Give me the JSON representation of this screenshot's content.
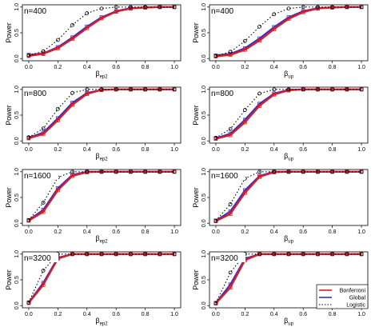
{
  "chart_data": {
    "type": "line",
    "ylabel": "Power",
    "xlim": [
      0,
      1
    ],
    "ylim": [
      0,
      1
    ],
    "x_ticks": [
      "0.0",
      "0.2",
      "0.4",
      "0.6",
      "0.8",
      "1.0"
    ],
    "y_ticks": [
      "0.0",
      "0.5",
      "1.0"
    ],
    "x": [
      0.0,
      0.1,
      0.2,
      0.3,
      0.4,
      0.5,
      0.6,
      0.7,
      0.8,
      0.9,
      1.0
    ],
    "legend": {
      "placement": "bottom-right of last panel",
      "entries": [
        {
          "name": "Bonferroni",
          "color": "#e41a1c",
          "style": "solid"
        },
        {
          "name": "Global",
          "color": "#3333cc",
          "style": "solid"
        },
        {
          "name": "Logistic",
          "color": "#000000",
          "style": "dotted"
        }
      ]
    },
    "panels": [
      {
        "n_label": "n=400",
        "xlabel_base": "β",
        "xlabel_sub": "ep2",
        "series": [
          {
            "name": "Bonferroni",
            "values": [
              0.05,
              0.09,
              0.2,
              0.38,
              0.59,
              0.78,
              0.91,
              0.97,
              0.99,
              1.0,
              1.0
            ]
          },
          {
            "name": "Global",
            "values": [
              0.07,
              0.1,
              0.22,
              0.41,
              0.62,
              0.8,
              0.92,
              0.98,
              0.99,
              1.0,
              1.0
            ]
          },
          {
            "name": "Logistic",
            "values": [
              0.06,
              0.14,
              0.36,
              0.65,
              0.88,
              0.97,
              1.0,
              1.0,
              1.0,
              1.0,
              1.0
            ]
          }
        ]
      },
      {
        "n_label": "n=400",
        "xlabel_base": "β",
        "xlabel_sub": "up",
        "series": [
          {
            "name": "Bonferroni",
            "values": [
              0.04,
              0.07,
              0.17,
              0.35,
              0.57,
              0.77,
              0.9,
              0.97,
              0.99,
              1.0,
              1.0
            ]
          },
          {
            "name": "Global",
            "values": [
              0.06,
              0.09,
              0.2,
              0.39,
              0.61,
              0.8,
              0.92,
              0.98,
              0.99,
              1.0,
              1.0
            ]
          },
          {
            "name": "Logistic",
            "values": [
              0.05,
              0.13,
              0.34,
              0.62,
              0.86,
              0.97,
              1.0,
              1.0,
              1.0,
              1.0,
              1.0
            ]
          }
        ]
      },
      {
        "n_label": "n=800",
        "xlabel_base": "β",
        "xlabel_sub": "ep2",
        "series": [
          {
            "name": "Bonferroni",
            "values": [
              0.05,
              0.13,
              0.4,
              0.7,
              0.91,
              0.99,
              1.0,
              1.0,
              1.0,
              1.0,
              1.0
            ]
          },
          {
            "name": "Global",
            "values": [
              0.06,
              0.16,
              0.44,
              0.74,
              0.93,
              0.99,
              1.0,
              1.0,
              1.0,
              1.0,
              1.0
            ]
          },
          {
            "name": "Logistic",
            "values": [
              0.07,
              0.24,
              0.62,
              0.93,
              1.0,
              1.0,
              1.0,
              1.0,
              1.0,
              1.0,
              1.0
            ]
          }
        ]
      },
      {
        "n_label": "n=800",
        "xlabel_base": "β",
        "xlabel_sub": "up",
        "series": [
          {
            "name": "Bonferroni",
            "values": [
              0.04,
              0.11,
              0.36,
              0.68,
              0.9,
              0.98,
              1.0,
              1.0,
              1.0,
              1.0,
              1.0
            ]
          },
          {
            "name": "Global",
            "values": [
              0.05,
              0.14,
              0.41,
              0.72,
              0.92,
              0.99,
              1.0,
              1.0,
              1.0,
              1.0,
              1.0
            ]
          },
          {
            "name": "Logistic",
            "values": [
              0.06,
              0.23,
              0.6,
              0.92,
              1.0,
              1.0,
              1.0,
              1.0,
              1.0,
              1.0,
              1.0
            ]
          }
        ]
      },
      {
        "n_label": "n=1600",
        "xlabel_base": "β",
        "xlabel_sub": "ep2",
        "series": [
          {
            "name": "Bonferroni",
            "values": [
              0.05,
              0.22,
              0.64,
              0.92,
              0.99,
              1.0,
              1.0,
              1.0,
              1.0,
              1.0,
              1.0
            ]
          },
          {
            "name": "Global",
            "values": [
              0.06,
              0.26,
              0.68,
              0.94,
              1.0,
              1.0,
              1.0,
              1.0,
              1.0,
              1.0,
              1.0
            ]
          },
          {
            "name": "Logistic",
            "values": [
              0.06,
              0.4,
              0.89,
              1.0,
              1.0,
              1.0,
              1.0,
              1.0,
              1.0,
              1.0,
              1.0
            ]
          }
        ]
      },
      {
        "n_label": "n=1600",
        "xlabel_base": "β",
        "xlabel_sub": "up",
        "series": [
          {
            "name": "Bonferroni",
            "values": [
              0.04,
              0.18,
              0.59,
              0.9,
              0.99,
              1.0,
              1.0,
              1.0,
              1.0,
              1.0,
              1.0
            ]
          },
          {
            "name": "Global",
            "values": [
              0.05,
              0.23,
              0.64,
              0.92,
              1.0,
              1.0,
              1.0,
              1.0,
              1.0,
              1.0,
              1.0
            ]
          },
          {
            "name": "Logistic",
            "values": [
              0.05,
              0.37,
              0.87,
              1.0,
              1.0,
              1.0,
              1.0,
              1.0,
              1.0,
              1.0,
              1.0
            ]
          }
        ]
      },
      {
        "n_label": "n=3200",
        "xlabel_base": "β",
        "xlabel_sub": "ep2",
        "series": [
          {
            "name": "Bonferroni",
            "values": [
              0.05,
              0.4,
              0.91,
              1.0,
              1.0,
              1.0,
              1.0,
              1.0,
              1.0,
              1.0,
              1.0
            ]
          },
          {
            "name": "Global",
            "values": [
              0.06,
              0.44,
              0.93,
              1.0,
              1.0,
              1.0,
              1.0,
              1.0,
              1.0,
              1.0,
              1.0
            ]
          },
          {
            "name": "Logistic",
            "values": [
              0.06,
              0.68,
              1.0,
              1.0,
              1.0,
              1.0,
              1.0,
              1.0,
              1.0,
              1.0,
              1.0
            ]
          }
        ]
      },
      {
        "n_label": "n=3200",
        "xlabel_base": "β",
        "xlabel_sub": "up",
        "series": [
          {
            "name": "Bonferroni",
            "values": [
              0.04,
              0.35,
              0.88,
              1.0,
              1.0,
              1.0,
              1.0,
              1.0,
              1.0,
              1.0,
              1.0
            ]
          },
          {
            "name": "Global",
            "values": [
              0.05,
              0.41,
              0.91,
              1.0,
              1.0,
              1.0,
              1.0,
              1.0,
              1.0,
              1.0,
              1.0
            ]
          },
          {
            "name": "Logistic",
            "values": [
              0.05,
              0.64,
              1.0,
              1.0,
              1.0,
              1.0,
              1.0,
              1.0,
              1.0,
              1.0,
              1.0
            ]
          }
        ]
      }
    ]
  }
}
